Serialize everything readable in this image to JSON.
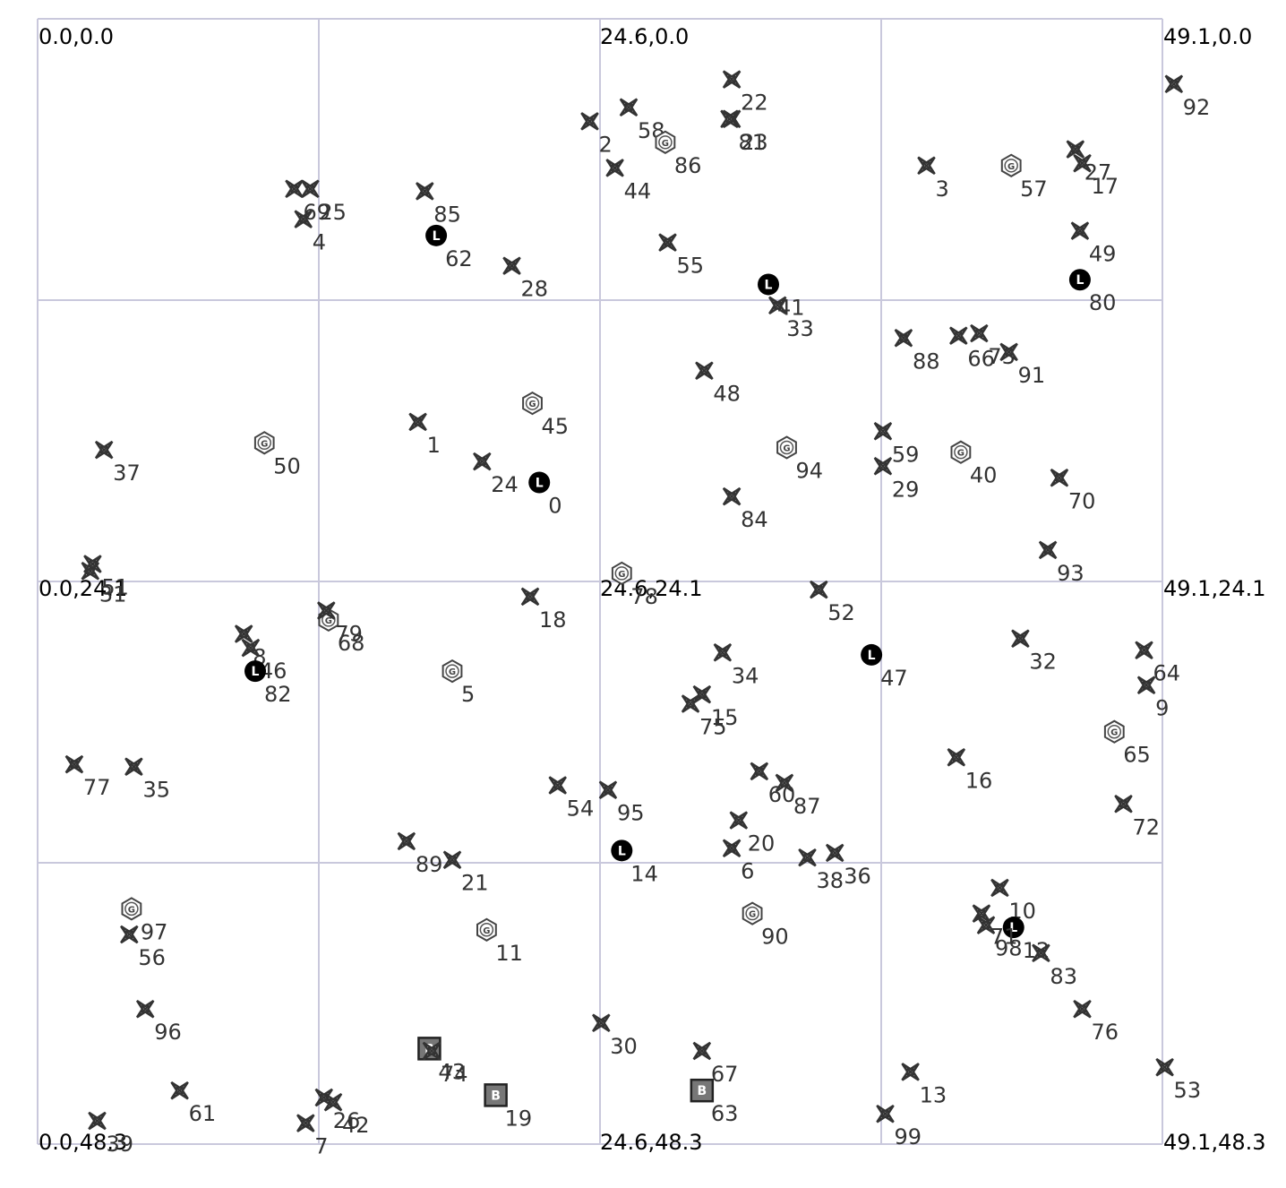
{
  "corner_labels": {
    "top_left": "0.0,0.0",
    "top_mid": "24.6,0.0",
    "top_right": "49.1,0.0",
    "mid_left": "0.0,24.1",
    "mid_mid": "24.6,24.1",
    "mid_right": "49.1,24.1",
    "bottom_left": "0.0,48.3",
    "bottom_mid": "24.6,48.3",
    "bottom_right": "49.1,48.3"
  },
  "map": {
    "x_max": 49.1,
    "y_max": 48.3,
    "grid_divisions": 4,
    "grid_color": "#c9c8dc"
  },
  "marker_types": {
    "star": "node-star-icon",
    "L": "L-circle-icon",
    "G": "G-hexagon-icon",
    "B": "B-square-icon"
  },
  "nodes": [
    {
      "id": "0",
      "type": "L",
      "x": 21.9,
      "y": 19.9
    },
    {
      "id": "1",
      "type": "star",
      "x": 16.6,
      "y": 17.3
    },
    {
      "id": "2",
      "type": "star",
      "x": 24.1,
      "y": 4.4
    },
    {
      "id": "3",
      "type": "star",
      "x": 38.8,
      "y": 6.3
    },
    {
      "id": "4",
      "type": "star",
      "x": 11.6,
      "y": 8.6
    },
    {
      "id": "5",
      "type": "G",
      "x": 18.1,
      "y": 28.0
    },
    {
      "id": "6",
      "type": "star",
      "x": 30.3,
      "y": 35.6
    },
    {
      "id": "7",
      "type": "star",
      "x": 11.7,
      "y": 47.4
    },
    {
      "id": "8",
      "type": "star",
      "x": 9.0,
      "y": 26.4
    },
    {
      "id": "9",
      "type": "star",
      "x": 48.4,
      "y": 28.6
    },
    {
      "id": "10",
      "type": "star",
      "x": 42.0,
      "y": 37.3
    },
    {
      "id": "11",
      "type": "G",
      "x": 19.6,
      "y": 39.1
    },
    {
      "id": "12",
      "type": "L",
      "x": 42.6,
      "y": 39.0
    },
    {
      "id": "13",
      "type": "star",
      "x": 38.1,
      "y": 45.2
    },
    {
      "id": "14",
      "type": "L",
      "x": 25.5,
      "y": 35.7
    },
    {
      "id": "15",
      "type": "star",
      "x": 29.0,
      "y": 29.0
    },
    {
      "id": "16",
      "type": "star",
      "x": 40.1,
      "y": 31.7
    },
    {
      "id": "17",
      "type": "star",
      "x": 45.6,
      "y": 6.2
    },
    {
      "id": "18",
      "type": "star",
      "x": 21.5,
      "y": 24.8
    },
    {
      "id": "19",
      "type": "B",
      "x": 20.0,
      "y": 46.2
    },
    {
      "id": "20",
      "type": "star",
      "x": 30.6,
      "y": 34.4
    },
    {
      "id": "21",
      "type": "star",
      "x": 18.1,
      "y": 36.1
    },
    {
      "id": "22",
      "type": "star",
      "x": 30.3,
      "y": 2.6
    },
    {
      "id": "23",
      "type": "star",
      "x": 30.3,
      "y": 4.3
    },
    {
      "id": "24",
      "type": "star",
      "x": 19.4,
      "y": 19.0
    },
    {
      "id": "25",
      "type": "star",
      "x": 11.9,
      "y": 7.3
    },
    {
      "id": "26",
      "type": "star",
      "x": 12.5,
      "y": 46.3
    },
    {
      "id": "27",
      "type": "star",
      "x": 45.3,
      "y": 5.6
    },
    {
      "id": "28",
      "type": "star",
      "x": 20.7,
      "y": 10.6
    },
    {
      "id": "29",
      "type": "star",
      "x": 36.9,
      "y": 19.2
    },
    {
      "id": "30",
      "type": "star",
      "x": 24.6,
      "y": 43.1
    },
    {
      "id": "31",
      "type": "star",
      "x": 2.3,
      "y": 23.7
    },
    {
      "id": "32",
      "type": "star",
      "x": 42.9,
      "y": 26.6
    },
    {
      "id": "33",
      "type": "star",
      "x": 32.3,
      "y": 12.3
    },
    {
      "id": "34",
      "type": "star",
      "x": 29.9,
      "y": 27.2
    },
    {
      "id": "35",
      "type": "star",
      "x": 4.2,
      "y": 32.1
    },
    {
      "id": "36",
      "type": "star",
      "x": 34.8,
      "y": 35.8
    },
    {
      "id": "37",
      "type": "star",
      "x": 2.9,
      "y": 18.5
    },
    {
      "id": "38",
      "type": "star",
      "x": 33.6,
      "y": 36.0
    },
    {
      "id": "39",
      "type": "star",
      "x": 2.6,
      "y": 47.3
    },
    {
      "id": "40",
      "type": "G",
      "x": 40.3,
      "y": 18.6
    },
    {
      "id": "41",
      "type": "L",
      "x": 31.9,
      "y": 11.4
    },
    {
      "id": "42",
      "type": "star",
      "x": 12.9,
      "y": 46.5
    },
    {
      "id": "43",
      "type": "B",
      "x": 17.1,
      "y": 44.2
    },
    {
      "id": "44",
      "type": "star",
      "x": 25.2,
      "y": 6.4
    },
    {
      "id": "45",
      "type": "G",
      "x": 21.6,
      "y": 16.5
    },
    {
      "id": "46",
      "type": "star",
      "x": 9.3,
      "y": 27.0
    },
    {
      "id": "47",
      "type": "L",
      "x": 36.4,
      "y": 27.3
    },
    {
      "id": "48",
      "type": "star",
      "x": 29.1,
      "y": 15.1
    },
    {
      "id": "49",
      "type": "star",
      "x": 45.5,
      "y": 9.1
    },
    {
      "id": "50",
      "type": "G",
      "x": 9.9,
      "y": 18.2
    },
    {
      "id": "51",
      "type": "star",
      "x": 2.4,
      "y": 23.4
    },
    {
      "id": "52",
      "type": "star",
      "x": 34.1,
      "y": 24.5
    },
    {
      "id": "53",
      "type": "star",
      "x": 49.2,
      "y": 45.0
    },
    {
      "id": "54",
      "type": "star",
      "x": 22.7,
      "y": 32.9
    },
    {
      "id": "55",
      "type": "star",
      "x": 27.5,
      "y": 9.6
    },
    {
      "id": "56",
      "type": "star",
      "x": 4.0,
      "y": 39.3
    },
    {
      "id": "57",
      "type": "G",
      "x": 42.5,
      "y": 6.3
    },
    {
      "id": "58",
      "type": "star",
      "x": 25.8,
      "y": 3.8
    },
    {
      "id": "59",
      "type": "star",
      "x": 36.9,
      "y": 17.7
    },
    {
      "id": "60",
      "type": "star",
      "x": 31.5,
      "y": 32.3
    },
    {
      "id": "61",
      "type": "star",
      "x": 6.2,
      "y": 46.0
    },
    {
      "id": "62",
      "type": "L",
      "x": 17.4,
      "y": 9.3
    },
    {
      "id": "63",
      "type": "B",
      "x": 29.0,
      "y": 46.0
    },
    {
      "id": "64",
      "type": "star",
      "x": 48.3,
      "y": 27.1
    },
    {
      "id": "65",
      "type": "G",
      "x": 47.0,
      "y": 30.6
    },
    {
      "id": "66",
      "type": "star",
      "x": 40.2,
      "y": 13.6
    },
    {
      "id": "67",
      "type": "star",
      "x": 29.0,
      "y": 44.3
    },
    {
      "id": "68",
      "type": "G",
      "x": 12.7,
      "y": 25.8
    },
    {
      "id": "69",
      "type": "star",
      "x": 11.2,
      "y": 7.3
    },
    {
      "id": "70",
      "type": "star",
      "x": 44.6,
      "y": 19.7
    },
    {
      "id": "71",
      "type": "star",
      "x": 41.2,
      "y": 38.4
    },
    {
      "id": "72",
      "type": "star",
      "x": 47.4,
      "y": 33.7
    },
    {
      "id": "73",
      "type": "star",
      "x": 41.1,
      "y": 13.5
    },
    {
      "id": "74",
      "type": "star",
      "x": 17.2,
      "y": 44.3
    },
    {
      "id": "75",
      "type": "star",
      "x": 28.5,
      "y": 29.4
    },
    {
      "id": "76",
      "type": "star",
      "x": 45.6,
      "y": 42.5
    },
    {
      "id": "77",
      "type": "star",
      "x": 1.6,
      "y": 32.0
    },
    {
      "id": "78",
      "type": "G",
      "x": 25.5,
      "y": 23.8
    },
    {
      "id": "79",
      "type": "star",
      "x": 12.6,
      "y": 25.4
    },
    {
      "id": "80",
      "type": "L",
      "x": 45.5,
      "y": 11.2
    },
    {
      "id": "81",
      "type": "star",
      "x": 30.2,
      "y": 4.3
    },
    {
      "id": "82",
      "type": "L",
      "x": 9.5,
      "y": 28.0
    },
    {
      "id": "83",
      "type": "star",
      "x": 43.8,
      "y": 40.1
    },
    {
      "id": "84",
      "type": "star",
      "x": 30.3,
      "y": 20.5
    },
    {
      "id": "85",
      "type": "star",
      "x": 16.9,
      "y": 7.4
    },
    {
      "id": "86",
      "type": "G",
      "x": 27.4,
      "y": 5.3
    },
    {
      "id": "87",
      "type": "star",
      "x": 32.6,
      "y": 32.8
    },
    {
      "id": "88",
      "type": "star",
      "x": 37.8,
      "y": 13.7
    },
    {
      "id": "89",
      "type": "star",
      "x": 16.1,
      "y": 35.3
    },
    {
      "id": "90",
      "type": "G",
      "x": 31.2,
      "y": 38.4
    },
    {
      "id": "91",
      "type": "star",
      "x": 42.4,
      "y": 14.3
    },
    {
      "id": "92",
      "type": "star",
      "x": 49.6,
      "y": 2.8
    },
    {
      "id": "93",
      "type": "star",
      "x": 44.1,
      "y": 22.8
    },
    {
      "id": "94",
      "type": "G",
      "x": 32.7,
      "y": 18.4
    },
    {
      "id": "95",
      "type": "star",
      "x": 24.9,
      "y": 33.1
    },
    {
      "id": "96",
      "type": "star",
      "x": 4.7,
      "y": 42.5
    },
    {
      "id": "97",
      "type": "G",
      "x": 4.1,
      "y": 38.2
    },
    {
      "id": "98",
      "type": "star",
      "x": 41.4,
      "y": 38.9
    },
    {
      "id": "99",
      "type": "star",
      "x": 37.0,
      "y": 47.0
    }
  ]
}
